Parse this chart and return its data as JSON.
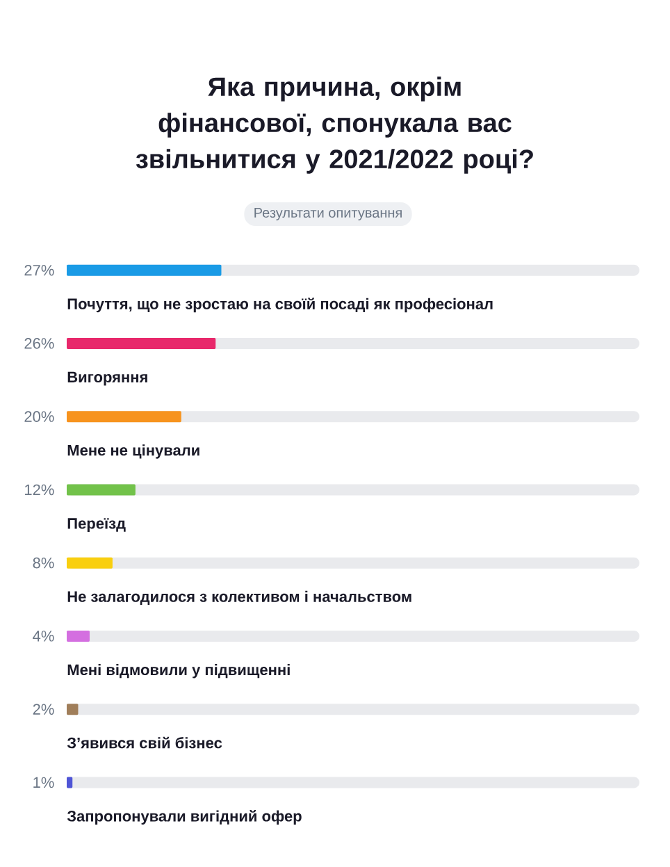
{
  "chart_data": {
    "type": "bar",
    "orientation": "horizontal",
    "title": "Яка причина, окрім фінансової, спонукала вас звільнитися у 2021/2022 році?",
    "subtitle": "Результати опитування",
    "categories": [
      "Почуття, що не зростаю на своїй посаді як професіонал",
      "Вигоряння",
      "Мене не цінували",
      "Переїзд",
      "Не залагодилося з колективом і начальством",
      "Мені відмовили у підвищенні",
      "З’явився свій бізнес",
      "Запропонували вигідний офер"
    ],
    "values": [
      27,
      26,
      20,
      12,
      8,
      4,
      2,
      1
    ],
    "value_labels": [
      "27%",
      "26%",
      "20%",
      "12%",
      "8%",
      "4%",
      "2%",
      "1%"
    ],
    "colors": [
      "#1a9be6",
      "#e8286b",
      "#f7931e",
      "#72c24a",
      "#f9cf0f",
      "#d46fe0",
      "#a07e5a",
      "#4f55d6"
    ],
    "xlim": [
      0,
      100
    ]
  }
}
